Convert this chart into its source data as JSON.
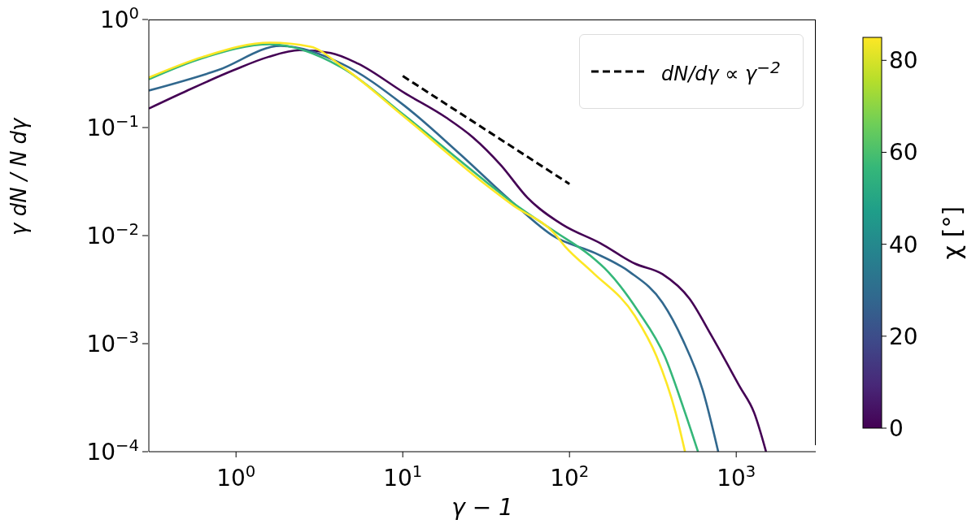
{
  "chart_data": {
    "type": "line",
    "xlabel": "γ − 1",
    "ylabel": "γ dN / N dγ",
    "clabel": "χ [°]",
    "clim": [
      0,
      85
    ],
    "cticks": [
      0,
      20,
      40,
      60,
      80
    ],
    "log": "xy",
    "xlim": [
      0.3,
      3000
    ],
    "ylim": [
      0.0001,
      1
    ],
    "xticks": [
      {
        "value": 1,
        "label": "10$^{0}$"
      },
      {
        "value": 10,
        "label": "10$^{1}$"
      },
      {
        "value": 100,
        "label": "10$^{2}$"
      },
      {
        "value": 1000,
        "label": "10$^{3}$"
      }
    ],
    "yticks": [
      {
        "value": 0.0001,
        "label": "10$^{−4}$"
      },
      {
        "value": 0.001,
        "label": "10$^{−3}$"
      },
      {
        "value": 0.01,
        "label": "10$^{−2}$"
      },
      {
        "value": 0.1,
        "label": "10$^{−1}$"
      },
      {
        "value": 1,
        "label": "10$^{0}$"
      }
    ],
    "legend": "top right",
    "marker": "none",
    "series": [
      {
        "color": "#440154",
        "x": [
          0.3,
          0.51,
          0.97,
          1.56,
          2.4,
          3.7,
          5.4,
          10.2,
          18.3,
          26.4,
          38.7,
          56,
          91,
          153,
          247,
          361,
          525,
          707,
          1050,
          1280,
          1510
        ],
        "values": [
          0.15,
          0.22,
          0.34,
          0.45,
          0.52,
          0.49,
          0.39,
          0.21,
          0.123,
          0.081,
          0.045,
          0.0224,
          0.0126,
          0.0085,
          0.0055,
          0.0044,
          0.0026,
          0.0012,
          0.0004,
          0.00023,
          0.0001
        ]
      },
      {
        "color": "#31688e",
        "x": [
          0.3,
          0.78,
          1.85,
          4.3,
          10.2,
          22,
          46,
          81,
          142,
          230,
          361,
          480,
          630,
          780
        ],
        "values": [
          0.22,
          0.34,
          0.57,
          0.39,
          0.16,
          0.057,
          0.02,
          0.0098,
          0.0069,
          0.0046,
          0.0024,
          0.00107,
          0.00037,
          0.0001
        ]
      },
      {
        "color": "#35b779",
        "x": [
          0.3,
          0.63,
          1.6,
          4.3,
          10.2,
          32,
          46,
          81,
          132,
          171,
          258,
          373,
          480,
          590
        ],
        "values": [
          0.28,
          0.44,
          0.59,
          0.36,
          0.13,
          0.031,
          0.02,
          0.011,
          0.0066,
          0.0046,
          0.002,
          0.00076,
          0.00026,
          0.0001
        ]
      },
      {
        "color": "#fde725",
        "x": [
          0.3,
          0.63,
          1.6,
          2.8,
          4.3,
          10.2,
          32,
          46,
          81,
          95,
          137,
          247,
          333,
          433,
          493
        ],
        "values": [
          0.29,
          0.45,
          0.61,
          0.56,
          0.37,
          0.126,
          0.029,
          0.019,
          0.0105,
          0.0078,
          0.0046,
          0.0018,
          0.00076,
          0.00023,
          0.0001
        ]
      },
      {
        "name": "dN/dγ ∝ γ$^{−2}$",
        "color": "#000000",
        "line_style": "dashed",
        "x": [
          10,
          100
        ],
        "values": [
          0.3,
          0.03
        ]
      }
    ]
  }
}
